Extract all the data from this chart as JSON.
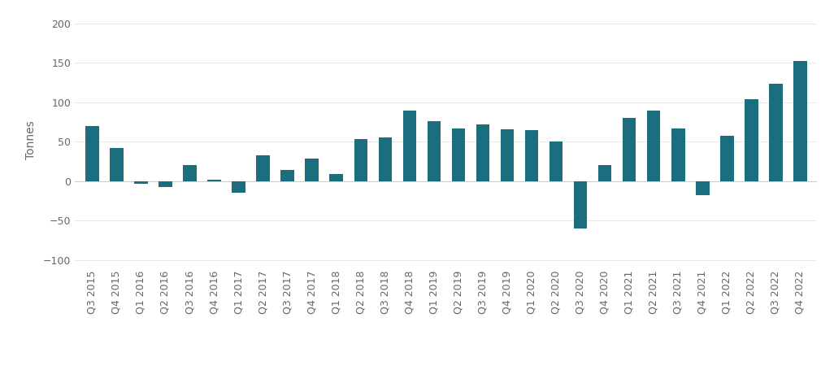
{
  "categories": [
    "Q3 2015",
    "Q4 2015",
    "Q1 2016",
    "Q2 2016",
    "Q3 2016",
    "Q4 2016",
    "Q1 2017",
    "Q2 2017",
    "Q3 2017",
    "Q4 2017",
    "Q1 2018",
    "Q2 2018",
    "Q3 2018",
    "Q4 2018",
    "Q1 2019",
    "Q2 2019",
    "Q3 2019",
    "Q4 2019",
    "Q1 2020",
    "Q2 2020",
    "Q3 2020",
    "Q4 2020",
    "Q1 2021",
    "Q2 2021",
    "Q3 2021",
    "Q4 2021",
    "Q1 2022",
    "Q2 2022",
    "Q3 2022",
    "Q4 2022"
  ],
  "values": [
    70,
    42,
    -3,
    -7,
    21,
    2,
    -15,
    33,
    14,
    29,
    9,
    53,
    55,
    90,
    76,
    67,
    72,
    66,
    65,
    50,
    -60,
    20,
    80,
    90,
    67,
    -18,
    58,
    104,
    123,
    152
  ],
  "bar_color": "#1a6e7e",
  "ylabel": "Tonnes",
  "ylim": [
    -110,
    215
  ],
  "yticks": [
    -100,
    -50,
    0,
    50,
    100,
    150,
    200
  ],
  "background_color": "#ffffff",
  "grid_color": "#e8e8e8",
  "zero_line_color": "#cccccc",
  "ylabel_fontsize": 10,
  "tick_fontsize": 9,
  "bar_width": 0.55
}
